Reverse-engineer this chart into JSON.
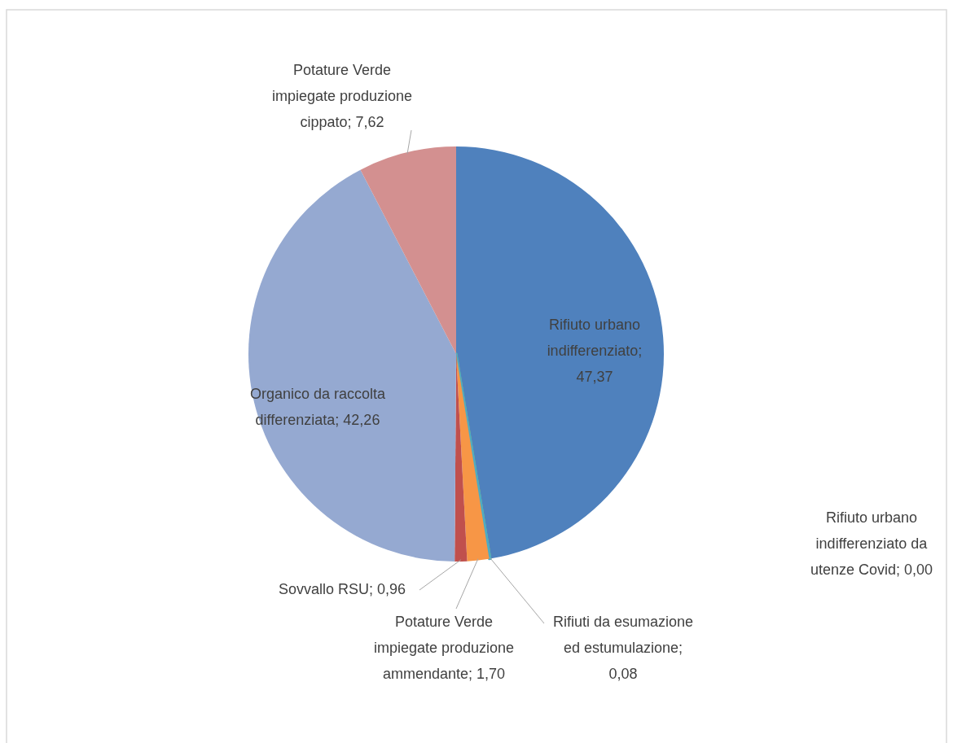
{
  "chart_data": {
    "type": "pie",
    "categories": [
      "Rifiuto urbano indifferenziato",
      "Rifiuto urbano indifferenziato da utenze Covid",
      "Rifiuti da esumazione ed estumulazione",
      "Potature Verde impiegate produzione ammendante",
      "Sovvallo RSU",
      "Organico da raccolta differenziata",
      "Potature Verde impiegate produzione cippato"
    ],
    "values": [
      47.37,
      0.0,
      0.08,
      1.7,
      0.96,
      42.26,
      7.62
    ],
    "colors": [
      "#4f81bd",
      "#9bbb59",
      "#4bacc6",
      "#f79646",
      "#c0504d",
      "#95a9d1",
      "#d39090"
    ],
    "value_labels": [
      "; 47,37",
      "; 0,00",
      "; 0,08",
      "; 1,70",
      "; 0,96",
      "; 42,26",
      "; 7,62"
    ],
    "legend": false
  }
}
